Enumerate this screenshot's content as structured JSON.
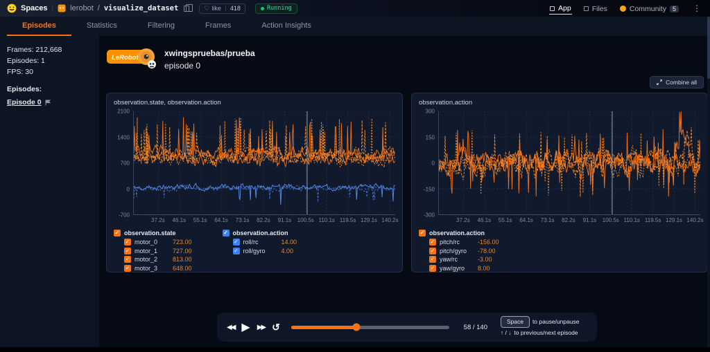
{
  "header": {
    "spaces_label": "Spaces",
    "divider": "|",
    "org": "lerobot",
    "slash": "/",
    "repo": "visualize_dataset",
    "like_label": "like",
    "like_count": "418",
    "status": "Running",
    "nav": [
      {
        "label": "App",
        "active": true,
        "icon": "app-icon"
      },
      {
        "label": "Files",
        "active": false,
        "icon": "files-icon"
      },
      {
        "label": "Community",
        "active": false,
        "icon": "community-icon",
        "badge": "5"
      }
    ],
    "kebab": "⋮"
  },
  "tabs": [
    {
      "label": "Episodes",
      "active": true
    },
    {
      "label": "Statistics",
      "active": false
    },
    {
      "label": "Filtering",
      "active": false
    },
    {
      "label": "Frames",
      "active": false
    },
    {
      "label": "Action Insights",
      "active": false
    }
  ],
  "sidebar": {
    "stats": [
      "Frames: 212,668",
      "Episodes: 1",
      "FPS: 30"
    ],
    "episodes_heading": "Episodes:",
    "episodes": [
      {
        "label": "Episode 0",
        "active": true
      }
    ]
  },
  "main": {
    "logo_text": "LeRobot",
    "dataset_title": "xwingspruebas/prueba",
    "episode_title": "episode 0",
    "combine_all_label": "Combine all"
  },
  "colors": {
    "accent_orange": "#f97316",
    "series_orange": "#f97316",
    "series_orange2": "#fb8c2a",
    "series_blue": "#5b8def",
    "series_blue2": "#4170c9",
    "running_green": "#19c37d",
    "value_text": "#e8862d",
    "grid": "#223050",
    "cursor": "#9aa3b5"
  },
  "chart_data": [
    {
      "type": "line",
      "title": "observation.state, observation.action",
      "x_ticks": [
        "37.2s",
        "46.1s",
        "55.1s",
        "64.1s",
        "73.1s",
        "82.2s",
        "91.1s",
        "100.5s",
        "110.1s",
        "119.5s",
        "129.1s",
        "140.2s"
      ],
      "y_ticks": [
        "2100",
        "1400",
        "700",
        "0",
        "-700"
      ],
      "ylim": [
        -700,
        2100
      ],
      "cursor_frac": 0.663,
      "legend": [
        {
          "group": "observation.state",
          "color": "#f97316",
          "items": [
            {
              "label": "motor_0",
              "value": "723.00"
            },
            {
              "label": "motor_1",
              "value": "727.00"
            },
            {
              "label": "motor_2",
              "value": "813.00"
            },
            {
              "label": "motor_3",
              "value": "648.00"
            }
          ]
        },
        {
          "group": "observation.action",
          "color": "#3b82f6",
          "items": [
            {
              "label": "roll/rc",
              "value": "14.00"
            },
            {
              "label": "roll/gyro",
              "value": "4.00"
            }
          ]
        }
      ],
      "series": [
        {
          "name": "motor_0",
          "color": "#f97316",
          "base": 820,
          "noise": 300,
          "revert": 0.74,
          "spikeProb": 0.045,
          "spikeAmp": 1080,
          "spikeSign": 1,
          "seed": 11
        },
        {
          "name": "motor_1",
          "color": "#fb8c2a",
          "dash": "3,2",
          "base": 900,
          "noise": 320,
          "revert": 0.74,
          "spikeProb": 0.05,
          "spikeAmp": 1020,
          "spikeSign": 1,
          "seed": 22
        },
        {
          "name": "motor_2",
          "color": "#f97316",
          "base": 950,
          "noise": 300,
          "revert": 0.74,
          "spikeProb": 0.04,
          "spikeAmp": 1000,
          "spikeSign": 1,
          "seed": 33
        },
        {
          "name": "motor_3",
          "color": "#fb8c2a",
          "dash": "2,2",
          "base": 800,
          "noise": 280,
          "revert": 0.74,
          "spikeProb": 0.045,
          "spikeAmp": 1150,
          "spikeSign": 1,
          "seed": 44
        },
        {
          "name": "roll/rc",
          "color": "#5b8def",
          "base": 40,
          "noise": 150,
          "revert": 0.7,
          "spikeProb": 0.02,
          "spikeAmp": 480,
          "spikeSign": -1,
          "seed": 55
        },
        {
          "name": "roll/gyro",
          "color": "#4170c9",
          "dash": "3,2",
          "base": 10,
          "noise": 130,
          "revert": 0.7,
          "spikeProb": 0.02,
          "spikeAmp": 430,
          "spikeSign": -1,
          "seed": 66
        }
      ]
    },
    {
      "type": "line",
      "title": "observation.action",
      "x_ticks": [
        "37.2s",
        "46.1s",
        "55.1s",
        "64.1s",
        "73.1s",
        "82.2s",
        "91.1s",
        "100.5s",
        "110.1s",
        "119.5s",
        "129.1s",
        "140.2s"
      ],
      "y_ticks": [
        "300",
        "150",
        "0",
        "-150",
        "-300"
      ],
      "ylim": [
        -300,
        300
      ],
      "cursor_frac": 0.663,
      "legend": [
        {
          "group": "observation.action",
          "color": "#f97316",
          "items": [
            {
              "label": "pitch/rc",
              "value": "-156.00"
            },
            {
              "label": "pitch/gyro",
              "value": "-78.00"
            },
            {
              "label": "yaw/rc",
              "value": "-3.00"
            },
            {
              "label": "yaw/gyro",
              "value": "8.00"
            }
          ]
        }
      ],
      "series": [
        {
          "name": "pitch/rc",
          "color": "#f97316",
          "base": 0,
          "noise": 120,
          "revert": 0.72,
          "spikeProb": 0.05,
          "spikeAmp": 200,
          "spikeSign": 0,
          "seed": 7,
          "bump": {
            "pos": 0.93,
            "w": 0.02,
            "amp": 215
          }
        },
        {
          "name": "pitch/gyro",
          "color": "#fb8c2a",
          "dash": "3,2",
          "base": -5,
          "noise": 130,
          "revert": 0.72,
          "spikeProb": 0.055,
          "spikeAmp": 215,
          "spikeSign": 0,
          "seed": 8,
          "bump": {
            "pos": 0.945,
            "w": 0.015,
            "amp": 150
          }
        },
        {
          "name": "yaw/rc",
          "color": "#f97316",
          "base": 5,
          "noise": 110,
          "revert": 0.72,
          "spikeProb": 0.05,
          "spikeAmp": 190,
          "spikeSign": 0,
          "seed": 9
        },
        {
          "name": "yaw/gyro",
          "color": "#fb8c2a",
          "dash": "2,2",
          "base": 0,
          "noise": 115,
          "revert": 0.72,
          "spikeProb": 0.05,
          "spikeAmp": 200,
          "spikeSign": 0,
          "seed": 10
        }
      ]
    }
  ],
  "player": {
    "counter": "58 / 140",
    "progress_pct": 41.4,
    "rewind_glyph": "◀◀",
    "play_glyph": "▶",
    "forward_glyph": "▶▶",
    "loop_glyph": "↺",
    "space_key": "Space",
    "pause_hint": "to pause/unpause",
    "episode_hint_keys": "↑ / ↓",
    "episode_hint": "to previous/next episode"
  }
}
